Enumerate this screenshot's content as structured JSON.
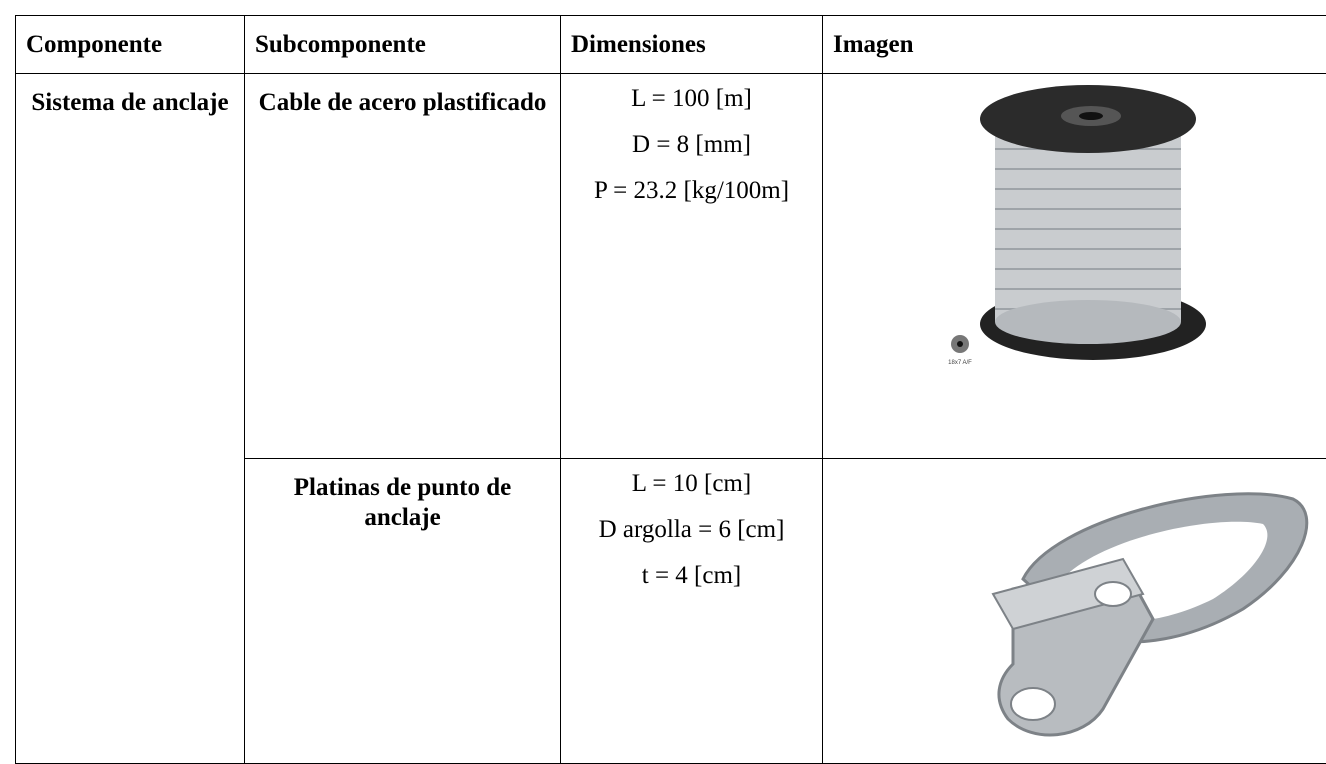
{
  "table": {
    "headers": [
      "Componente",
      "Subcomponente",
      "Dimensiones",
      "Imagen"
    ],
    "component": "Sistema de anclaje",
    "rows": [
      {
        "subcomponent": "Cable de acero plastificado",
        "dimensions": [
          "L = 100 [m]",
          "D = 8 [mm]",
          "P = 23.2 [kg/100m]"
        ],
        "image_label": "18x7 A/F"
      },
      {
        "subcomponent": "Platinas de punto de anclaje",
        "dimensions": [
          "L = 10 [cm]",
          "D argolla = 6 [cm]",
          "t = 4 [cm]"
        ]
      }
    ]
  }
}
